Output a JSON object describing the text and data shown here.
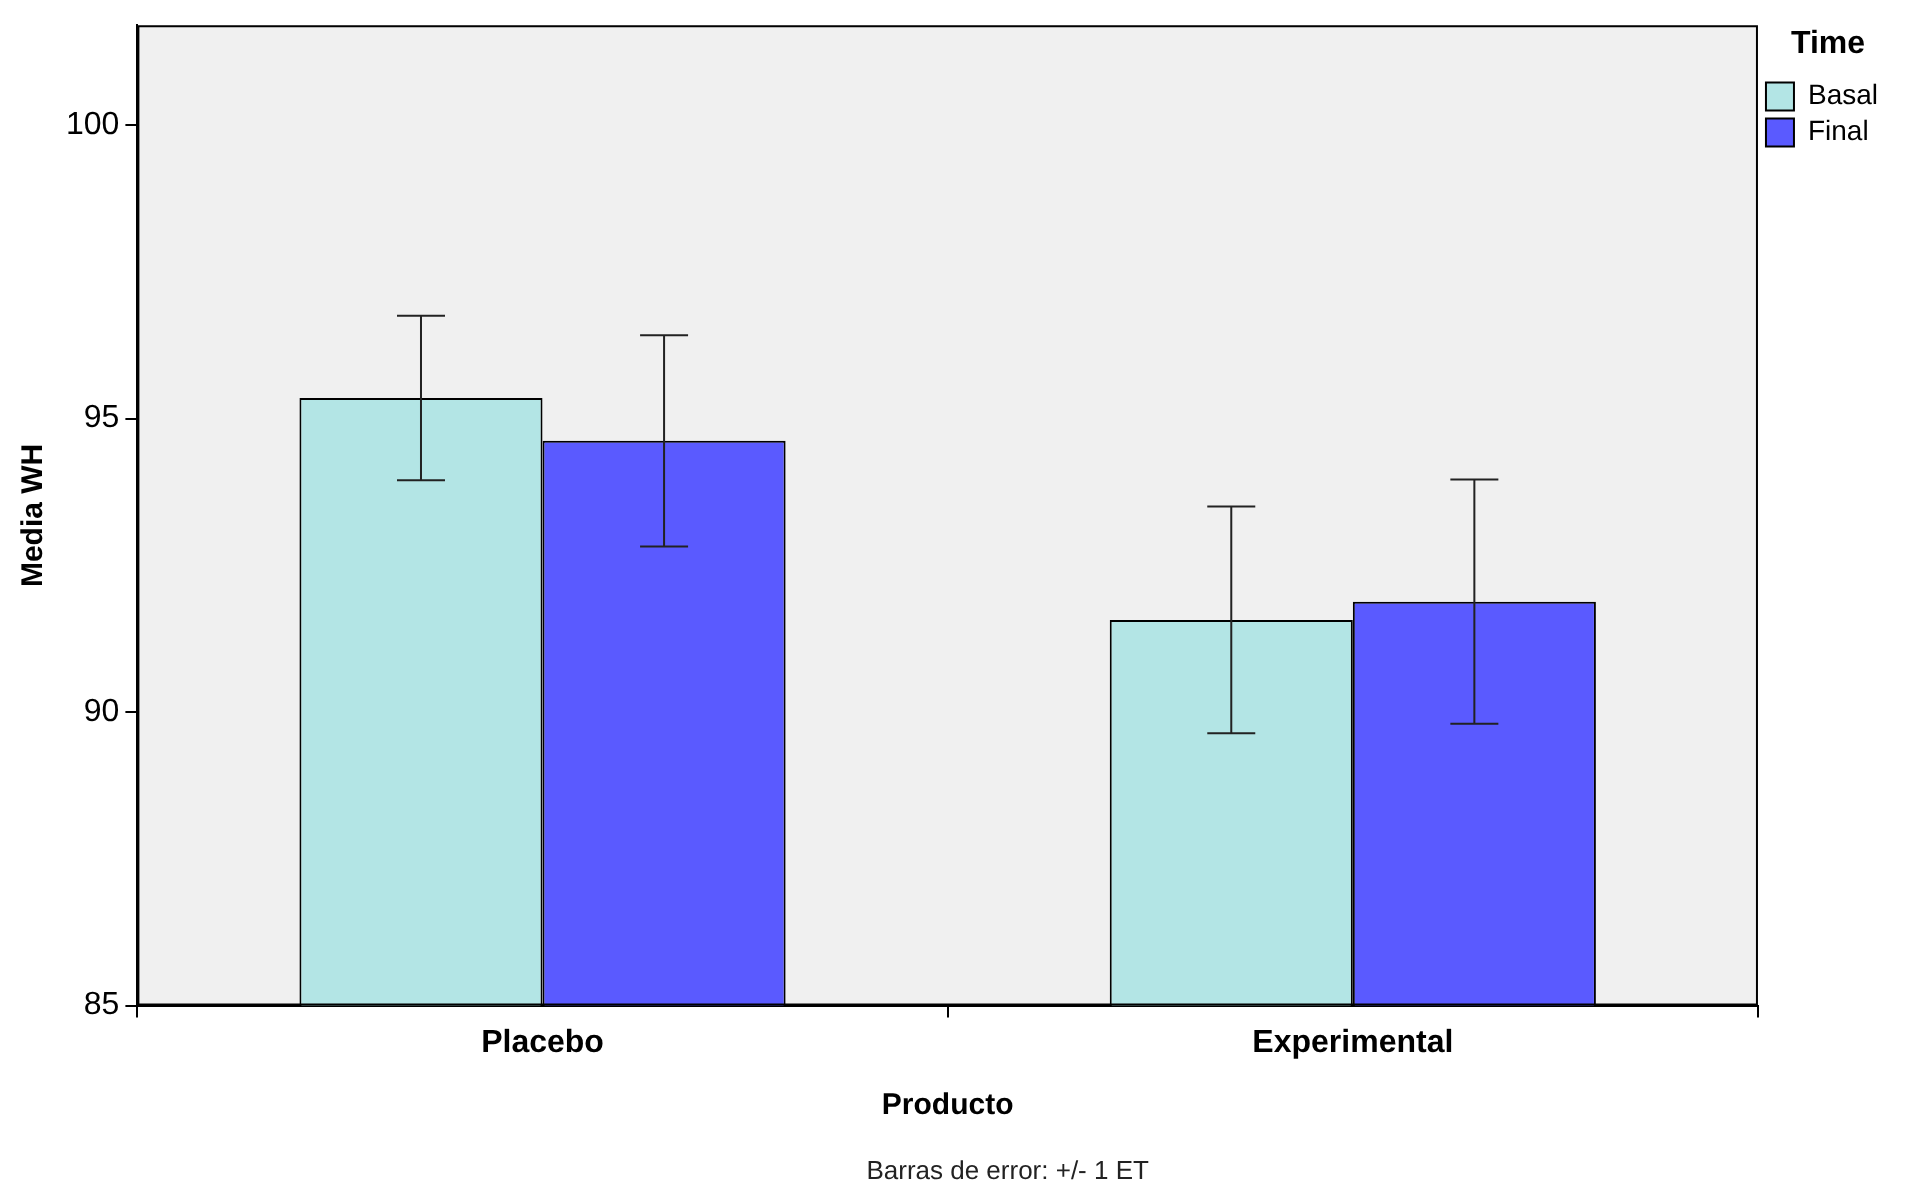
{
  "chart_data": {
    "type": "bar",
    "xlabel": "Producto",
    "ylabel": "Media WH",
    "legend_title": "Time",
    "categories": [
      "Placebo",
      "Experimental"
    ],
    "series": [
      {
        "name": "Basal",
        "color": "#b3e5e5",
        "values": [
          95.35,
          91.57
        ],
        "errors": [
          1.4,
          1.93
        ]
      },
      {
        "name": "Final",
        "color": "#5a5aff",
        "values": [
          94.62,
          91.88
        ],
        "errors": [
          1.8,
          2.08
        ]
      }
    ],
    "ylim": [
      85,
      101.7
    ],
    "yticks": [
      85,
      90,
      95,
      100
    ],
    "grid": false,
    "legend": "top right",
    "annotations": [
      "Barras de error: +/- 1 ET"
    ]
  }
}
